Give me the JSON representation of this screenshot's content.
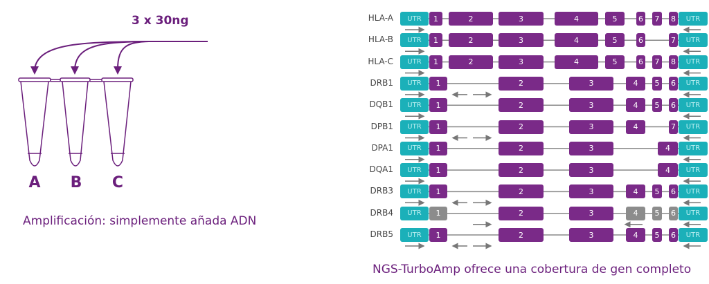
{
  "left": {
    "amount_label": "3 x 30ng",
    "tubes": [
      "A",
      "B",
      "C"
    ],
    "caption": "Amplificación: simplemente añada ADN"
  },
  "right": {
    "caption": "NGS-TurboAmp ofrece una cobertura de gen completo",
    "utr_label": "UTR",
    "genes": [
      {
        "name": "HLA-A",
        "exons": [
          "1",
          "2",
          "3",
          "4",
          "5",
          "6",
          "7",
          "8"
        ]
      },
      {
        "name": "HLA-B",
        "exons": [
          "1",
          "2",
          "3",
          "4",
          "5",
          "6",
          "7"
        ]
      },
      {
        "name": "HLA-C",
        "exons": [
          "1",
          "2",
          "3",
          "4",
          "5",
          "6",
          "7",
          "8"
        ]
      },
      {
        "name": "DRB1",
        "exons": [
          "1",
          "2",
          "3",
          "4",
          "5",
          "6"
        ]
      },
      {
        "name": "DQB1",
        "exons": [
          "1",
          "2",
          "3",
          "4",
          "5",
          "6"
        ]
      },
      {
        "name": "DPB1",
        "exons": [
          "1",
          "2",
          "3",
          "4",
          "7"
        ]
      },
      {
        "name": "DPA1",
        "exons": [
          "1",
          "2",
          "3",
          "4"
        ]
      },
      {
        "name": "DQA1",
        "exons": [
          "1",
          "2",
          "3",
          "4"
        ]
      },
      {
        "name": "DRB3",
        "exons": [
          "1",
          "2",
          "3",
          "4",
          "5",
          "6"
        ]
      },
      {
        "name": "DRB4",
        "exons": [
          "1",
          "2",
          "3",
          "4",
          "5",
          "6"
        ],
        "gray_exons": [
          "1",
          "4",
          "5",
          "6"
        ]
      },
      {
        "name": "DRB5",
        "exons": [
          "1",
          "2",
          "3",
          "4",
          "5",
          "6"
        ]
      }
    ]
  },
  "colors": {
    "exon": "#7a2a88",
    "utr": "#1bb0b9",
    "gray_exon": "#8c8c8c",
    "accent": "#6b1f7c"
  }
}
